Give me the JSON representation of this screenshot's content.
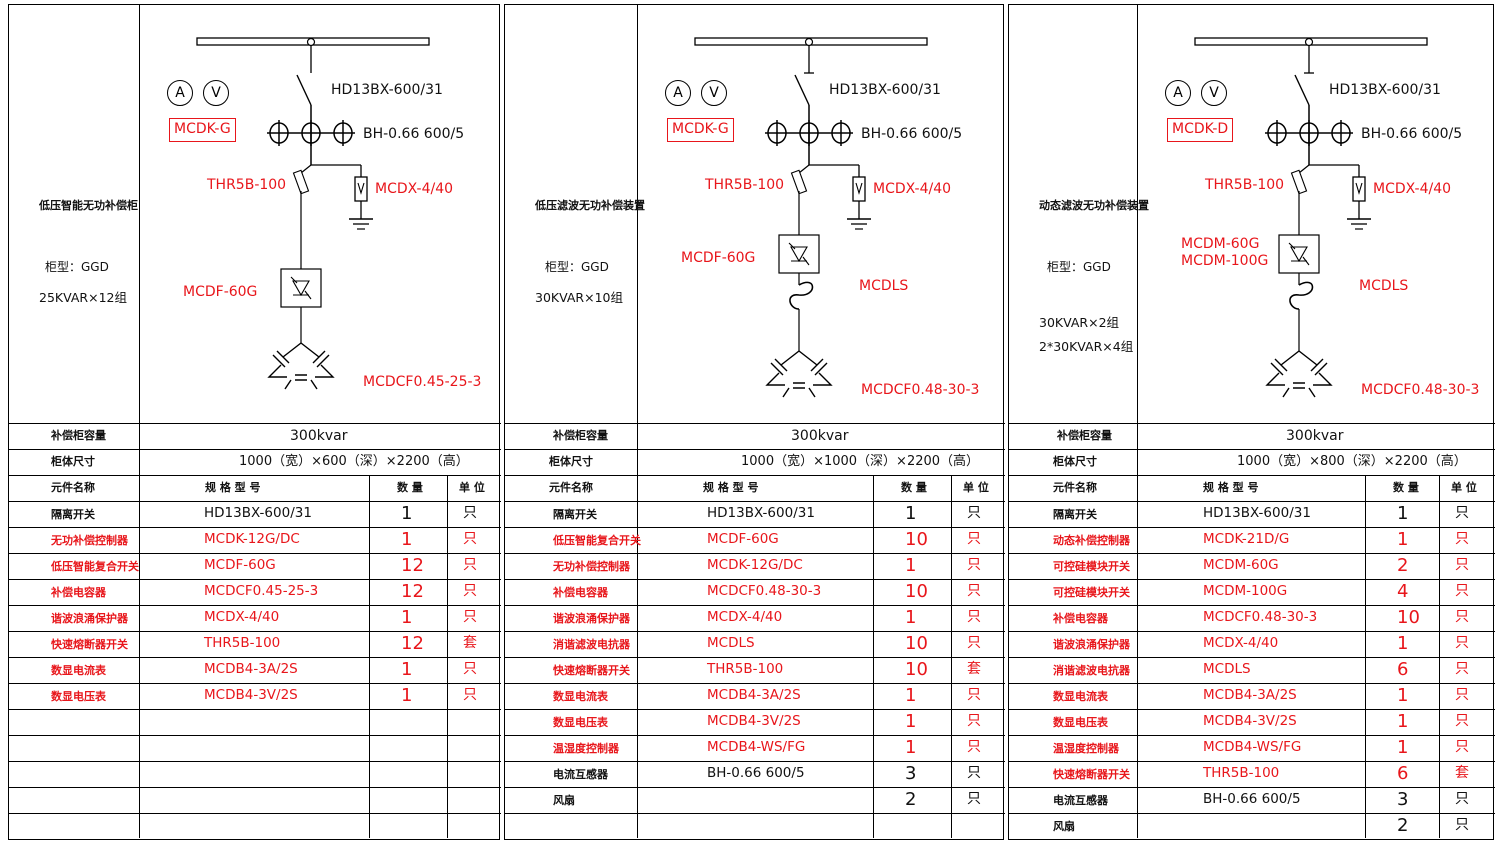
{
  "panels": [
    {
      "id": "p1",
      "title": "低压智能无功补偿柜",
      "cabinet_type": "柜型：GGD",
      "groups": [
        "25KVAR×12组"
      ],
      "controller": "MCDK-G",
      "meters": [
        "A",
        "V"
      ],
      "switch_label": "HD13BX-600/31",
      "ct_label": "BH-0.66  600/5",
      "fuse_label": "THR5B-100",
      "protector_label": "MCDX-4/40",
      "composite_switch_label": [
        "MCDF-60G"
      ],
      "reactor_label": "",
      "capacitor_label": "MCDCF0.45-25-3",
      "capacity_header": "补偿柜容量",
      "capacity_value": "300kvar",
      "size_header": "柜体尺寸",
      "size_value": "1000（宽）×600（深）×2200（高）",
      "col_headers": {
        "name": "元件名称",
        "spec": "规 格 型 号",
        "qty": "数 量",
        "unit": "单 位"
      },
      "rows": [
        {
          "name": "隔离开关",
          "spec": "HD13BX-600/31",
          "qty": "1",
          "unit": "只",
          "red": false
        },
        {
          "name": "无功补偿控制器",
          "spec": "MCDK-12G/DC",
          "qty": "1",
          "unit": "只",
          "red": true
        },
        {
          "name": "低压智能复合开关",
          "spec": "MCDF-60G",
          "qty": "12",
          "unit": "只",
          "red": true
        },
        {
          "name": "补偿电容器",
          "spec": "MCDCF0.45-25-3",
          "qty": "12",
          "unit": "只",
          "red": true
        },
        {
          "name": "谐波浪涌保护器",
          "spec": "MCDX-4/40",
          "qty": "1",
          "unit": "只",
          "red": true
        },
        {
          "name": "快速熔断器开关",
          "spec": "THR5B-100",
          "qty": "12",
          "unit": "套",
          "red": true
        },
        {
          "name": "数显电流表",
          "spec": "MCDB4-3A/2S",
          "qty": "1",
          "unit": "只",
          "red": true
        },
        {
          "name": "数显电压表",
          "spec": "MCDB4-3V/2S",
          "qty": "1",
          "unit": "只",
          "red": true
        }
      ],
      "empty_rows": 5
    },
    {
      "id": "p2",
      "title": "低压滤波无功补偿装置",
      "cabinet_type": "柜型：GGD",
      "groups": [
        "30KVAR×10组"
      ],
      "controller": "MCDK-G",
      "meters": [
        "A",
        "V"
      ],
      "switch_label": "HD13BX-600/31",
      "ct_label": "BH-0.66 600/5",
      "fuse_label": "THR5B-100",
      "protector_label": "MCDX-4/40",
      "composite_switch_label": [
        "MCDF-60G"
      ],
      "reactor_label": "MCDLS",
      "capacitor_label": "MCDCF0.48-30-3",
      "capacity_header": "补偿柜容量",
      "capacity_value": "300kvar",
      "size_header": "柜体尺寸",
      "size_value": "1000（宽）×1000（深）×2200（高）",
      "col_headers": {
        "name": "元件名称",
        "spec": "规 格 型 号",
        "qty": "数 量",
        "unit": "单 位"
      },
      "rows": [
        {
          "name": "隔离开关",
          "spec": "HD13BX-600/31",
          "qty": "1",
          "unit": "只",
          "red": false
        },
        {
          "name": "低压智能复合开关",
          "spec": "MCDF-60G",
          "qty": "10",
          "unit": "只",
          "red": true
        },
        {
          "name": "无功补偿控制器",
          "spec": "MCDK-12G/DC",
          "qty": "1",
          "unit": "只",
          "red": true
        },
        {
          "name": "补偿电容器",
          "spec": "MCDCF0.48-30-3",
          "qty": "10",
          "unit": "只",
          "red": true
        },
        {
          "name": "谐波浪涌保护器",
          "spec": "MCDX-4/40",
          "qty": "1",
          "unit": "只",
          "red": true
        },
        {
          "name": "消谐滤波电抗器",
          "spec": "MCDLS",
          "qty": "10",
          "unit": "只",
          "red": true
        },
        {
          "name": "快速熔断器开关",
          "spec": "THR5B-100",
          "qty": "10",
          "unit": "套",
          "red": true
        },
        {
          "name": "数显电流表",
          "spec": "MCDB4-3A/2S",
          "qty": "1",
          "unit": "只",
          "red": true
        },
        {
          "name": "数显电压表",
          "spec": "MCDB4-3V/2S",
          "qty": "1",
          "unit": "只",
          "red": true
        },
        {
          "name": "温湿度控制器",
          "spec": "MCDB4-WS/FG",
          "qty": "1",
          "unit": "只",
          "red": true
        },
        {
          "name": "电流互感器",
          "spec": "BH-0.66  600/5",
          "qty": "3",
          "unit": "只",
          "red": false
        },
        {
          "name": "风扇",
          "spec": "",
          "qty": "2",
          "unit": "只",
          "red": false
        }
      ],
      "empty_rows": 1
    },
    {
      "id": "p3",
      "title": "动态滤波无功补偿装置",
      "cabinet_type": "柜型：GGD",
      "groups": [
        "30KVAR×2组",
        "2*30KVAR×4组"
      ],
      "controller": "MCDK-D",
      "meters": [
        "A",
        "V"
      ],
      "switch_label": "HD13BX-600/31",
      "ct_label": "BH-0.66 600/5",
      "fuse_label": "THR5B-100",
      "protector_label": "MCDX-4/40",
      "composite_switch_label": [
        "MCDM-60G",
        "MCDM-100G"
      ],
      "reactor_label": "MCDLS",
      "capacitor_label": "MCDCF0.48-30-3",
      "capacity_header": "补偿柜容量",
      "capacity_value": "300kvar",
      "size_header": "柜体尺寸",
      "size_value": "1000（宽）×800（深）×2200（高）",
      "col_headers": {
        "name": "元件名称",
        "spec": "规 格 型 号",
        "qty": "数 量",
        "unit": "单 位"
      },
      "rows": [
        {
          "name": "隔离开关",
          "spec": "HD13BX-600/31",
          "qty": "1",
          "unit": "只",
          "red": false
        },
        {
          "name": "动态补偿控制器",
          "spec": "MCDK-21D/G",
          "qty": "1",
          "unit": "只",
          "red": true
        },
        {
          "name": "可控硅模块开关",
          "spec": "MCDM-60G",
          "qty": "2",
          "unit": "只",
          "red": true
        },
        {
          "name": "可控硅模块开关",
          "spec": "MCDM-100G",
          "qty": "4",
          "unit": "只",
          "red": true
        },
        {
          "name": "补偿电容器",
          "spec": "MCDCF0.48-30-3",
          "qty": "10",
          "unit": "只",
          "red": true
        },
        {
          "name": "谐波浪涌保护器",
          "spec": "MCDX-4/40",
          "qty": "1",
          "unit": "只",
          "red": true
        },
        {
          "name": "消谐滤波电抗器",
          "spec": "MCDLS",
          "qty": "6",
          "unit": "只",
          "red": true
        },
        {
          "name": "数显电流表",
          "spec": "MCDB4-3A/2S",
          "qty": "1",
          "unit": "只",
          "red": true
        },
        {
          "name": "数显电压表",
          "spec": "MCDB4-3V/2S",
          "qty": "1",
          "unit": "只",
          "red": true
        },
        {
          "name": "温湿度控制器",
          "spec": "MCDB4-WS/FG",
          "qty": "1",
          "unit": "只",
          "red": true
        },
        {
          "name": "快速熔断器开关",
          "spec": "THR5B-100",
          "qty": "6",
          "unit": "套",
          "red": true
        },
        {
          "name": "电流互感器",
          "spec": "BH-0.66  600/5",
          "qty": "3",
          "unit": "只",
          "red": false
        },
        {
          "name": "风扇",
          "spec": "",
          "qty": "2",
          "unit": "只",
          "red": false
        }
      ],
      "empty_rows": 0
    }
  ]
}
